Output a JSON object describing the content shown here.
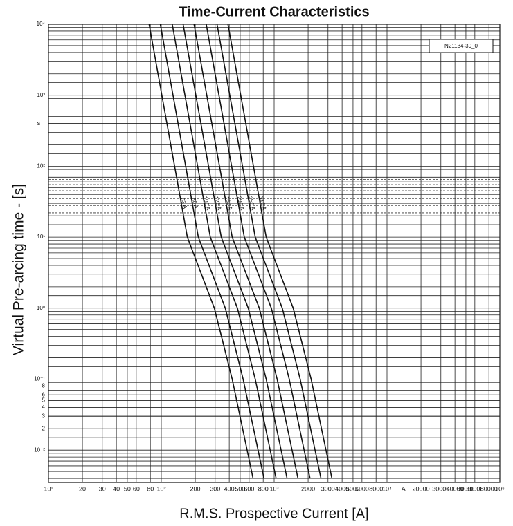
{
  "chart_data": {
    "type": "line",
    "title": "Time-Current Characteristics",
    "x_label": "R.M.S. Prospective Current [A]",
    "y_label": "Virtual Pre-arcing time - [s]",
    "x_unit": "A",
    "y_unit": "s",
    "annotation": "N21134-30_0",
    "log_x": true,
    "log_y": true,
    "grid": true,
    "xlim": [
      10,
      100000
    ],
    "ylim": [
      0.0035,
      10000
    ],
    "xticks": [
      {
        "value": 10,
        "label": "10¹"
      },
      20,
      30,
      40,
      50,
      60,
      80,
      {
        "value": 100,
        "label": "10²"
      },
      200,
      300,
      400,
      500,
      600,
      800,
      {
        "value": 1000,
        "label": "10³"
      },
      2000,
      3000,
      4000,
      5000,
      6000,
      8000,
      {
        "value": 10000,
        "label": "10⁴"
      },
      20000,
      30000,
      40000,
      50000,
      60000,
      80000,
      {
        "value": 100000,
        "label": "10⁵"
      }
    ],
    "yticks": [
      {
        "value": 10000,
        "label": "10⁴"
      },
      {
        "value": 1000,
        "label": "10³"
      },
      {
        "value": 100,
        "label": "10²"
      },
      {
        "value": 10,
        "label": "10¹"
      },
      {
        "value": 1,
        "label": "10⁰"
      },
      {
        "value": 0.1,
        "label": "10⁻¹"
      },
      {
        "value": 0.08,
        "label": "8"
      },
      {
        "value": 0.06,
        "label": "6"
      },
      {
        "value": 0.05,
        "label": "5"
      },
      {
        "value": 0.04,
        "label": "4"
      },
      {
        "value": 0.03,
        "label": "3"
      },
      {
        "value": 0.02,
        "label": "2"
      },
      {
        "value": 0.01,
        "label": "10⁻²"
      }
    ],
    "color": "#111111",
    "series": [
      {
        "name": "63 A",
        "x": [
          78,
          170,
          295,
          425,
          650
        ],
        "values": [
          10000,
          10,
          1,
          0.1,
          0.004
        ]
      },
      {
        "name": "80 A",
        "x": [
          98,
          213,
          369,
          531,
          813
        ],
        "values": [
          10000,
          10,
          1,
          0.1,
          0.004
        ]
      },
      {
        "name": "100 A",
        "x": [
          125,
          272,
          472,
          680,
          1040
        ],
        "values": [
          10000,
          10,
          1,
          0.1,
          0.004
        ]
      },
      {
        "name": "125 A",
        "x": [
          156,
          340,
          590,
          850,
          1300
        ],
        "values": [
          10000,
          10,
          1,
          0.1,
          0.004
        ]
      },
      {
        "name": "160 A",
        "x": [
          195,
          425,
          738,
          1063,
          1625
        ],
        "values": [
          10000,
          10,
          1,
          0.1,
          0.004
        ]
      },
      {
        "name": "200 A",
        "x": [
          250,
          544,
          944,
          1360,
          2080
        ],
        "values": [
          10000,
          10,
          1,
          0.1,
          0.004
        ]
      },
      {
        "name": "250 A",
        "x": [
          312,
          680,
          1180,
          1700,
          2600
        ],
        "values": [
          10000,
          10,
          1,
          0.1,
          0.004
        ]
      },
      {
        "name": "315 A",
        "x": [
          390,
          850,
          1475,
          2125,
          3250
        ],
        "values": [
          10000,
          10,
          1,
          0.1,
          0.004
        ]
      }
    ]
  }
}
